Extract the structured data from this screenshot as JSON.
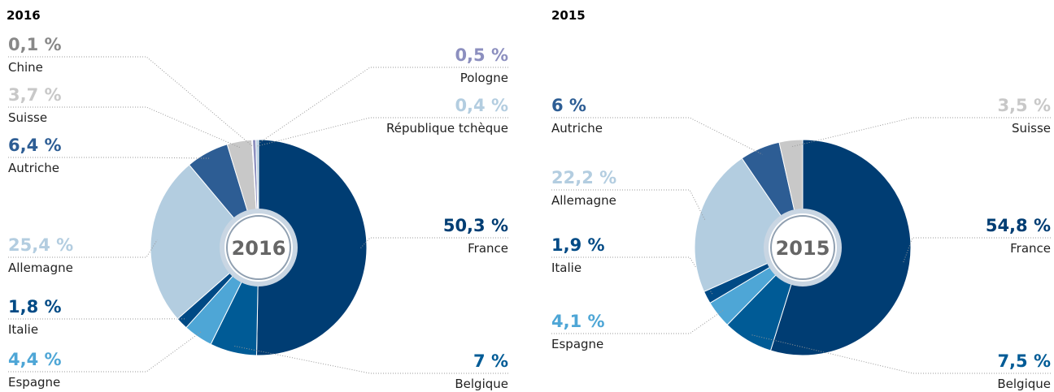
{
  "chart_data": [
    {
      "type": "pie",
      "title": "2016",
      "center_label": "2016",
      "categories": [
        "France",
        "Belgique",
        "Espagne",
        "Italie",
        "Allemagne",
        "Autriche",
        "Suisse",
        "Chine",
        "Pologne",
        "République tchèque"
      ],
      "values": [
        50.3,
        7,
        4.4,
        1.8,
        25.4,
        6.4,
        3.7,
        0.1,
        0.5,
        0.4
      ],
      "value_labels": [
        "50,3 %",
        "7 %",
        "4,4 %",
        "1,8 %",
        "25,4 %",
        "6,4 %",
        "3,7 %",
        "0,1 %",
        "0,5 %",
        "0,4 %"
      ],
      "colors": [
        "#003d73",
        "#005b96",
        "#4ea6d6",
        "#004a85",
        "#b3cde0",
        "#2d5d94",
        "#c8c8c8",
        "#888888",
        "#8c8fbf",
        "#b3cde0"
      ]
    },
    {
      "type": "pie",
      "title": "2015",
      "center_label": "2015",
      "categories": [
        "France",
        "Belgique",
        "Espagne",
        "Italie",
        "Allemagne",
        "Autriche",
        "Suisse"
      ],
      "values": [
        54.8,
        7.5,
        4.1,
        1.9,
        22.2,
        6,
        3.5
      ],
      "value_labels": [
        "54,8 %",
        "7,5 %",
        "4,1 %",
        "1,9 %",
        "22,2 %",
        "6 %",
        "3,5 %"
      ],
      "colors": [
        "#003d73",
        "#005b96",
        "#4ea6d6",
        "#004a85",
        "#b3cde0",
        "#2d5d94",
        "#c8c8c8"
      ]
    }
  ]
}
